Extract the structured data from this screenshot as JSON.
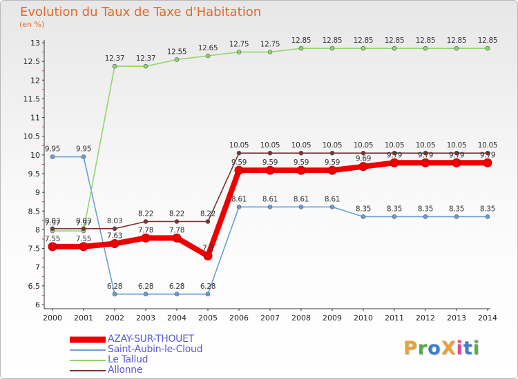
{
  "title": "Evolution du Taux de Taxe d'Habitation",
  "units": "(en %)",
  "brand": {
    "text": "ProXiti",
    "colors": [
      "#e8a23a",
      "#5aa84a",
      "#3f7fc8",
      "#e8a23a",
      "#e04a8a",
      "#3f7fc8",
      "#5aa84a"
    ]
  },
  "chart_data": {
    "type": "line",
    "title": "Evolution du Taux de Taxe d'Habitation",
    "ylabel": "(en %)",
    "xlabel": "",
    "ylim": [
      6,
      13
    ],
    "yticks": [
      6,
      6.5,
      7,
      7.5,
      8,
      8.5,
      9,
      9.5,
      10,
      10.5,
      11,
      11.5,
      12,
      12.5,
      13
    ],
    "x": [
      "2000",
      "2001",
      "2002",
      "2003",
      "2004",
      "2005",
      "2006",
      "2007",
      "2008",
      "2009",
      "2010",
      "2011",
      "2012",
      "2013",
      "2014"
    ],
    "grid": false,
    "legend_position": "bottom-left",
    "series": [
      {
        "name": "AZAY-SUR-THOUET",
        "color": "#ee0000",
        "emphasis": true,
        "values": [
          7.55,
          7.55,
          7.63,
          7.78,
          7.78,
          7.3,
          9.59,
          9.59,
          9.59,
          9.59,
          9.69,
          9.79,
          9.79,
          9.79,
          9.79
        ],
        "labels": [
          "7.55",
          "7.55",
          "7.63",
          "7.78",
          "7.78",
          "7.3",
          "9.59",
          "9.59",
          "9.59",
          "9.59",
          "9.69",
          "9.79",
          "9.79",
          "9.79",
          "9.79"
        ]
      },
      {
        "name": "Saint-Aubin-le-Cloud",
        "color": "#6a9fd4",
        "values": [
          9.95,
          9.95,
          6.28,
          6.28,
          6.28,
          6.28,
          8.61,
          8.61,
          8.61,
          8.61,
          8.35,
          8.35,
          8.35,
          8.35,
          8.35
        ],
        "labels": [
          "9.95",
          "9.95",
          "6.28",
          "6.28",
          "6.28",
          "6.28",
          "8.61",
          "8.61",
          "8.61",
          "8.61",
          "8.35",
          "8.35",
          "8.35",
          "8.35",
          "8.35"
        ]
      },
      {
        "name": "Le Tallud",
        "color": "#8fd66b",
        "values": [
          7.97,
          7.97,
          12.37,
          12.37,
          12.55,
          12.65,
          12.75,
          12.75,
          12.85,
          12.85,
          12.85,
          12.85,
          12.85,
          12.85,
          12.85
        ],
        "labels": [
          "7.97",
          "7.97",
          "12.37",
          "12.37",
          "12.55",
          "12.65",
          "12.75",
          "12.75",
          "12.85",
          "12.85",
          "12.85",
          "12.85",
          "12.85",
          "12.85",
          "12.85"
        ]
      },
      {
        "name": "Allonne",
        "color": "#7a3333",
        "values": [
          8.03,
          8.03,
          8.03,
          8.22,
          8.22,
          8.22,
          10.05,
          10.05,
          10.05,
          10.05,
          10.05,
          10.05,
          10.05,
          10.05,
          10.05
        ],
        "labels": [
          "8.03",
          "8.03",
          "8.03",
          "8.22",
          "8.22",
          "8.22",
          "10.05",
          "10.05",
          "10.05",
          "10.05",
          "10.05",
          "10.05",
          "10.05",
          "10.05",
          "10.05"
        ]
      }
    ]
  }
}
